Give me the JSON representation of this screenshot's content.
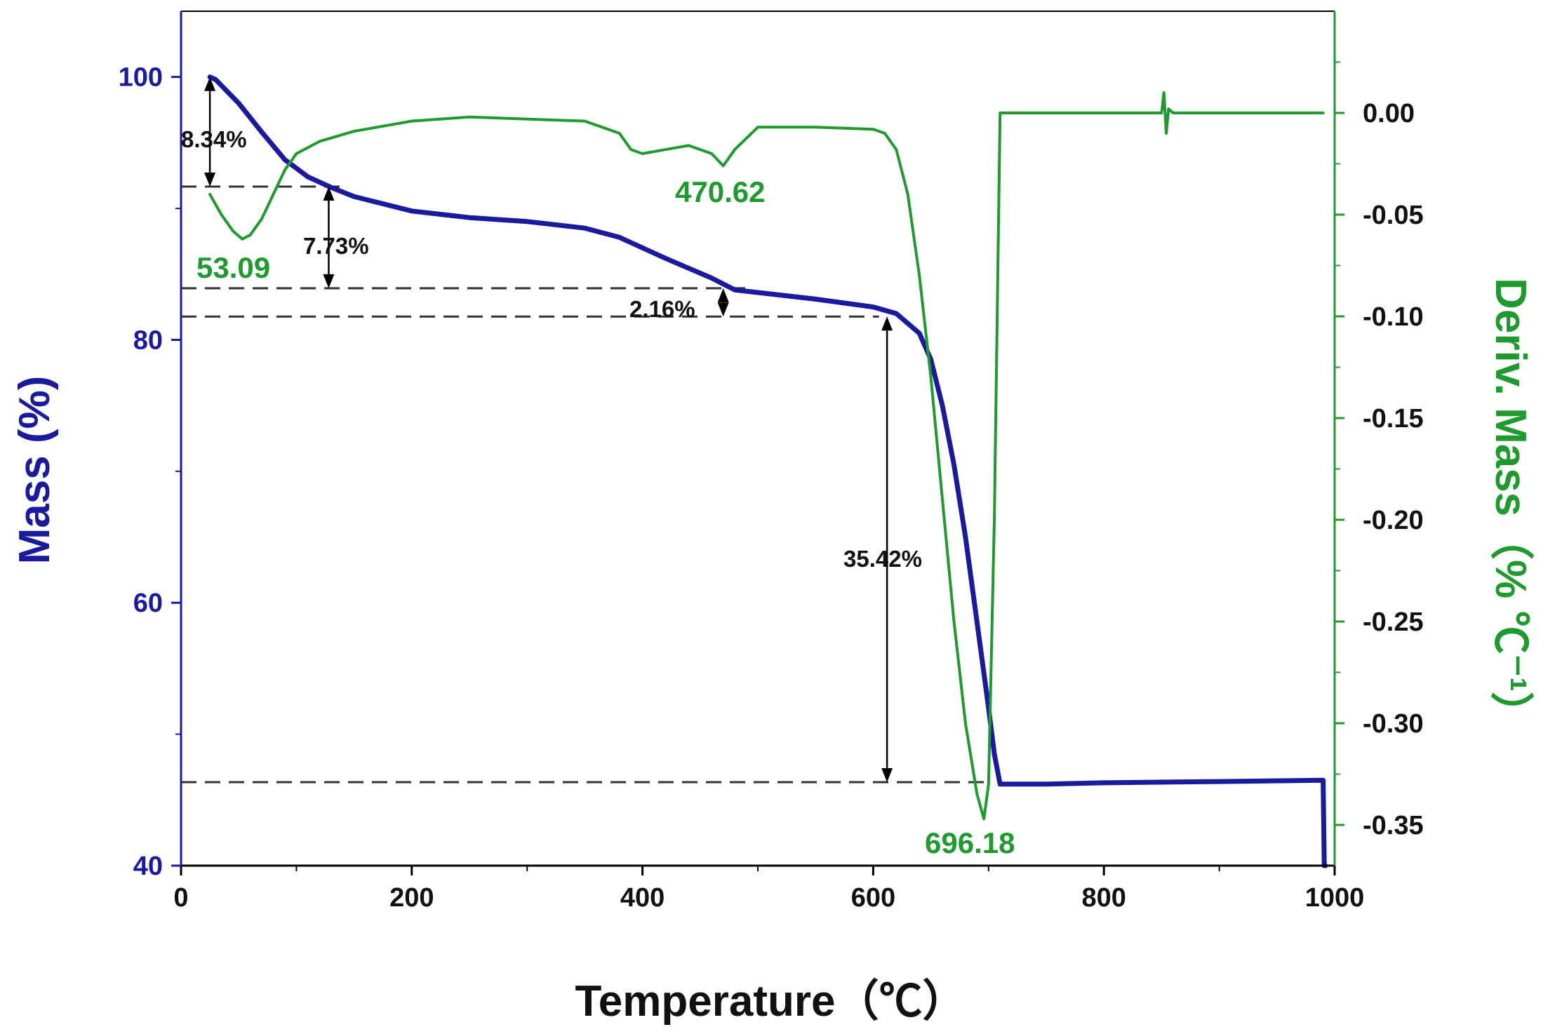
{
  "chart_data": {
    "type": "line",
    "xlabel": "Temperature（℃）",
    "ylabel_left": "Mass (%)",
    "ylabel_right": "Deriv. Mass（% ℃⁻¹）",
    "xlim": [
      0,
      1000
    ],
    "ylim_left": [
      40,
      105
    ],
    "ylim_right": [
      -0.37,
      0.05
    ],
    "x_ticks": [
      "0",
      "200",
      "400",
      "600",
      "800",
      "1000"
    ],
    "y_left_ticks": [
      "40",
      "60",
      "80",
      "100"
    ],
    "y_right_ticks": [
      "0.00",
      "-0.05",
      "-0.10",
      "-0.15",
      "-0.20",
      "-0.25",
      "-0.30",
      "-0.35"
    ],
    "grid": false,
    "colors": {
      "mass": "#1a1a9e",
      "deriv": "#1e9a2e",
      "left_axis": "#1a1a9e",
      "right_axis": "#1e9a2e",
      "annotation": "#333333"
    },
    "series": [
      {
        "axis": "left",
        "x": [
          25,
          30,
          50,
          70,
          90,
          110,
          130,
          150,
          200,
          250,
          300,
          350,
          380,
          420,
          460,
          480,
          500,
          550,
          600,
          620,
          640,
          650,
          660,
          670,
          680,
          690,
          700,
          705,
          710,
          750,
          800,
          900,
          990,
          991,
          992
        ],
        "values": [
          100.0,
          99.8,
          98.0,
          95.8,
          93.7,
          92.4,
          91.6,
          90.9,
          89.8,
          89.3,
          89.0,
          88.5,
          87.8,
          86.2,
          84.7,
          83.8,
          83.6,
          83.1,
          82.5,
          82.0,
          80.5,
          78.5,
          75.0,
          70.5,
          65.0,
          58.5,
          52.0,
          48.5,
          46.2,
          46.2,
          46.3,
          46.4,
          46.5,
          40.0,
          40.0
        ]
      },
      {
        "axis": "right",
        "x": [
          25,
          35,
          45,
          53,
          60,
          70,
          80,
          90,
          100,
          120,
          150,
          200,
          250,
          300,
          350,
          380,
          390,
          400,
          420,
          440,
          460,
          470,
          480,
          500,
          550,
          600,
          610,
          620,
          630,
          640,
          650,
          660,
          670,
          680,
          690,
          696,
          700,
          705,
          710,
          750,
          800,
          850,
          852,
          854,
          856,
          860,
          900,
          950,
          990
        ],
        "values": [
          -0.04,
          -0.05,
          -0.058,
          -0.062,
          -0.06,
          -0.052,
          -0.04,
          -0.028,
          -0.02,
          -0.014,
          -0.009,
          -0.004,
          -0.002,
          -0.003,
          -0.004,
          -0.01,
          -0.018,
          -0.02,
          -0.018,
          -0.016,
          -0.02,
          -0.026,
          -0.018,
          -0.007,
          -0.007,
          -0.008,
          -0.01,
          -0.018,
          -0.04,
          -0.08,
          -0.13,
          -0.19,
          -0.25,
          -0.3,
          -0.335,
          -0.347,
          -0.33,
          -0.2,
          0.0,
          0.0,
          0.0,
          0.0,
          0.01,
          -0.01,
          0.002,
          0.0,
          0.0,
          0.0,
          0.0
        ]
      }
    ],
    "annotations": {
      "mass_steps": [
        {
          "label": "8.34%",
          "from": 100.0,
          "to": 91.66
        },
        {
          "label": "7.73%",
          "from": 91.66,
          "to": 83.93
        },
        {
          "label": "2.16%",
          "from": 83.93,
          "to": 81.77
        },
        {
          "label": "35.42%",
          "from": 81.77,
          "to": 46.35
        }
      ],
      "peaks": [
        {
          "label": "53.09",
          "x": 53.09
        },
        {
          "label": "470.62",
          "x": 470.62
        },
        {
          "label": "696.18",
          "x": 696.18
        }
      ]
    }
  }
}
